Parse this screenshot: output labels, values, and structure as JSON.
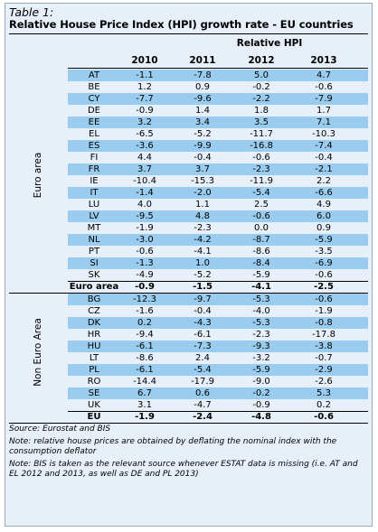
{
  "table": {
    "label": "Table 1:",
    "title": "Relative House Price Index (HPI) growth rate - EU countries",
    "super_header": "Relative HPI",
    "years": [
      "2010",
      "2011",
      "2012",
      "2013"
    ]
  },
  "groups": [
    {
      "label": "Euro area",
      "rows": [
        {
          "code": "AT",
          "values": [
            "-1.1",
            "-7.8",
            "5.0",
            "4.7"
          ]
        },
        {
          "code": "BE",
          "values": [
            "1.2",
            "0.9",
            "-0.2",
            "-0.6"
          ]
        },
        {
          "code": "CY",
          "values": [
            "-7.7",
            "-9.6",
            "-2.2",
            "-7.9"
          ]
        },
        {
          "code": "DE",
          "values": [
            "-0.9",
            "1.4",
            "1.8",
            "1.7"
          ]
        },
        {
          "code": "EE",
          "values": [
            "3.2",
            "3.4",
            "3.5",
            "7.1"
          ]
        },
        {
          "code": "EL",
          "values": [
            "-6.5",
            "-5.2",
            "-11.7",
            "-10.3"
          ]
        },
        {
          "code": "ES",
          "values": [
            "-3.6",
            "-9.9",
            "-16.8",
            "-7.4"
          ]
        },
        {
          "code": "FI",
          "values": [
            "4.4",
            "-0.4",
            "-0.6",
            "-0.4"
          ]
        },
        {
          "code": "FR",
          "values": [
            "3.7",
            "3.7",
            "-2.3",
            "-2.1"
          ]
        },
        {
          "code": "IE",
          "values": [
            "-10.4",
            "-15.3",
            "-11.9",
            "2.2"
          ]
        },
        {
          "code": "IT",
          "values": [
            "-1.4",
            "-2.0",
            "-5.4",
            "-6.6"
          ]
        },
        {
          "code": "LU",
          "values": [
            "4.0",
            "1.1",
            "2.5",
            "4.9"
          ]
        },
        {
          "code": "LV",
          "values": [
            "-9.5",
            "4.8",
            "-0.6",
            "6.0"
          ]
        },
        {
          "code": "MT",
          "values": [
            "-1.9",
            "-2.3",
            "0.0",
            "0.9"
          ]
        },
        {
          "code": "NL",
          "values": [
            "-3.0",
            "-4.2",
            "-8.7",
            "-5.9"
          ]
        },
        {
          "code": "PT",
          "values": [
            "-0.6",
            "-4.1",
            "-8.6",
            "-3.5"
          ]
        },
        {
          "code": "SI",
          "values": [
            "-1.3",
            "1.0",
            "-8.4",
            "-6.9"
          ]
        },
        {
          "code": "SK",
          "values": [
            "-4.9",
            "-5.2",
            "-5.9",
            "-0.6"
          ]
        }
      ],
      "total": {
        "code": "Euro area",
        "values": [
          "-0.9",
          "-1.5",
          "-4.1",
          "-2.5"
        ]
      }
    },
    {
      "label": "Non Euro Area",
      "rows": [
        {
          "code": "BG",
          "values": [
            "-12.3",
            "-9.7",
            "-5.3",
            "-0.6"
          ]
        },
        {
          "code": "CZ",
          "values": [
            "-1.6",
            "-0.4",
            "-4.0",
            "-1.9"
          ]
        },
        {
          "code": "DK",
          "values": [
            "0.2",
            "-4.3",
            "-5.3",
            "-0.8"
          ]
        },
        {
          "code": "HR",
          "values": [
            "-9.4",
            "-6.1",
            "-2.3",
            "-17.8"
          ]
        },
        {
          "code": "HU",
          "values": [
            "-6.1",
            "-7.3",
            "-9.3",
            "-3.8"
          ]
        },
        {
          "code": "LT",
          "values": [
            "-8.6",
            "2.4",
            "-3.2",
            "-0.7"
          ]
        },
        {
          "code": "PL",
          "values": [
            "-6.1",
            "-5.4",
            "-5.9",
            "-2.9"
          ]
        },
        {
          "code": "RO",
          "values": [
            "-14.4",
            "-17.9",
            "-9.0",
            "-2.6"
          ]
        },
        {
          "code": "SE",
          "values": [
            "6.7",
            "0.6",
            "-0.2",
            "5.3"
          ]
        },
        {
          "code": "UK",
          "values": [
            "3.1",
            "-4.7",
            "-0.9",
            "0.2"
          ]
        }
      ],
      "total": {
        "code": "EU",
        "values": [
          "-1.9",
          "-2.4",
          "-4.8",
          "-0.6"
        ]
      }
    }
  ],
  "notes": [
    "Source: Eurostat and BIS",
    "Note: relative house prices are obtained by deflating the nominal index with the consumption deflator",
    "Note: BIS is taken as the relevant source whenever ESTAT data is missing (i.e. AT and EL 2012 and 2013, as well as DE and PL 2013)"
  ]
}
